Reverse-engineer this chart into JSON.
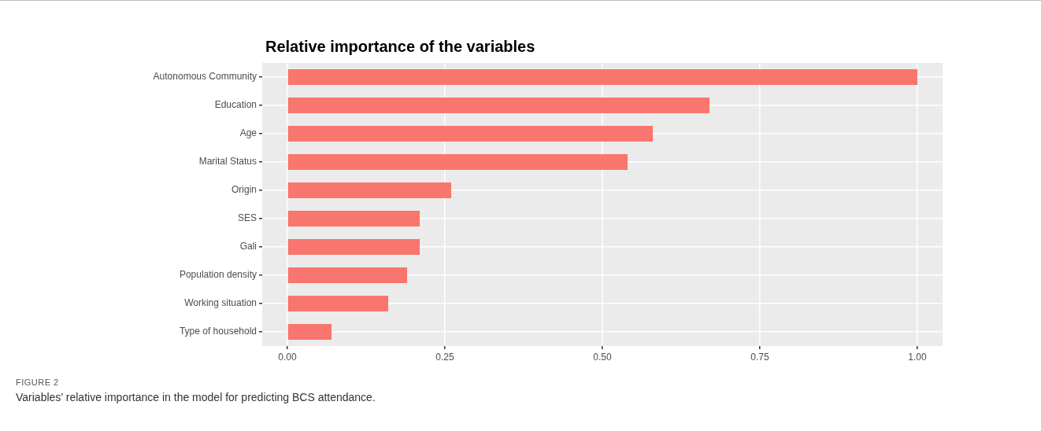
{
  "chart_data": {
    "type": "bar",
    "orientation": "horizontal",
    "title": "Relative importance of the variables",
    "categories": [
      "Autonomous Community",
      "Education",
      "Age",
      "Marital Status",
      "Origin",
      "SES",
      "Gali",
      "Population density",
      "Working situation",
      "Type of household"
    ],
    "values": [
      1.0,
      0.67,
      0.58,
      0.54,
      0.26,
      0.21,
      0.21,
      0.19,
      0.16,
      0.07
    ],
    "color": "#f8766d",
    "xlim": [
      -0.04,
      1.04
    ],
    "xticks": [
      {
        "value": 0,
        "label": "0.00"
      },
      {
        "value": 0.25,
        "label": "0.25"
      },
      {
        "value": 0.5,
        "label": "0.50"
      },
      {
        "value": 0.75,
        "label": "0.75"
      },
      {
        "value": 1,
        "label": "1.00"
      }
    ],
    "grid": true,
    "annotations": [
      "FIGURE 2",
      "Variables’ relative importance in the model for predicting BCS attendance."
    ]
  }
}
